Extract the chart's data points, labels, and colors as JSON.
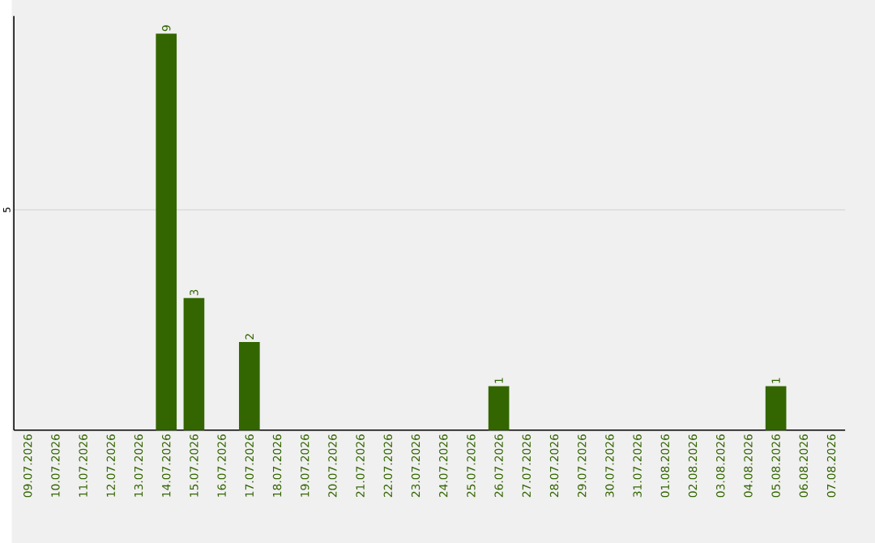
{
  "chart_data": {
    "type": "bar",
    "categories": [
      "09.07.2026",
      "10.07.2026",
      "11.07.2026",
      "12.07.2026",
      "13.07.2026",
      "14.07.2026",
      "15.07.2026",
      "16.07.2026",
      "17.07.2026",
      "18.07.2026",
      "19.07.2026",
      "20.07.2026",
      "21.07.2026",
      "22.07.2026",
      "23.07.2026",
      "24.07.2026",
      "25.07.2026",
      "26.07.2026",
      "27.07.2026",
      "28.07.2026",
      "29.07.2026",
      "30.07.2026",
      "31.07.2026",
      "01.08.2026",
      "02.08.2026",
      "03.08.2026",
      "04.08.2026",
      "05.08.2026",
      "06.08.2026",
      "07.08.2026"
    ],
    "values": [
      0,
      0,
      0,
      0,
      0,
      9,
      3,
      0,
      2,
      0,
      0,
      0,
      0,
      0,
      0,
      0,
      0,
      1,
      0,
      0,
      0,
      0,
      0,
      0,
      0,
      0,
      0,
      1,
      0,
      0
    ],
    "color": "#336600",
    "value_labels": [
      null,
      null,
      null,
      null,
      null,
      "9",
      "3",
      null,
      "2",
      null,
      null,
      null,
      null,
      null,
      null,
      null,
      null,
      "1",
      null,
      null,
      null,
      null,
      null,
      null,
      null,
      null,
      null,
      "1",
      null,
      null
    ],
    "ylim": [
      0,
      9.4
    ],
    "yticks": [
      5
    ],
    "grid": "y"
  }
}
